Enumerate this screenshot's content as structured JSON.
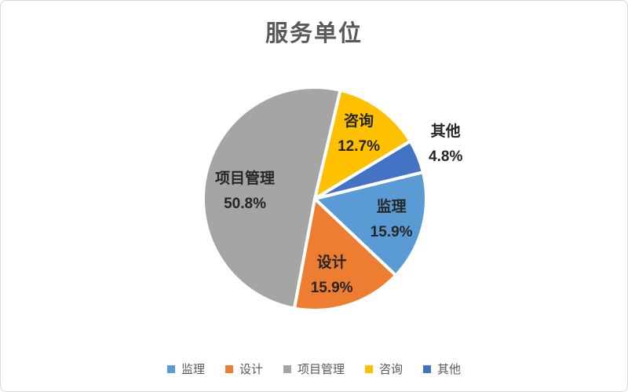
{
  "chart_data": {
    "type": "pie",
    "title": "服务单位",
    "slices": [
      {
        "key": "supervision",
        "label": "监理",
        "value": 15.9,
        "percent_label": "15.9%",
        "color": "#5B9BD5"
      },
      {
        "key": "design",
        "label": "设计",
        "value": 15.9,
        "percent_label": "15.9%",
        "color": "#ED7D31"
      },
      {
        "key": "project-management",
        "label": "项目管理",
        "value": 50.8,
        "percent_label": "50.8%",
        "color": "#A5A5A5"
      },
      {
        "key": "consulting",
        "label": "咨询",
        "value": 12.7,
        "percent_label": "12.7%",
        "color": "#FFC000"
      },
      {
        "key": "other",
        "label": "其他",
        "value": 4.8,
        "percent_label": "4.8%",
        "color": "#4472C4"
      }
    ],
    "start_angle_deg": 76.2,
    "direction": "clockwise",
    "data_labels": "name_and_percent",
    "legend_position": "bottom",
    "slice_border_color": "#FFFFFF",
    "title_color": "#595959",
    "label_color": "#262626",
    "legend_text_color": "#595959",
    "background_color": "#FFFFFF",
    "frame_border_color": "#D9D9D9"
  }
}
